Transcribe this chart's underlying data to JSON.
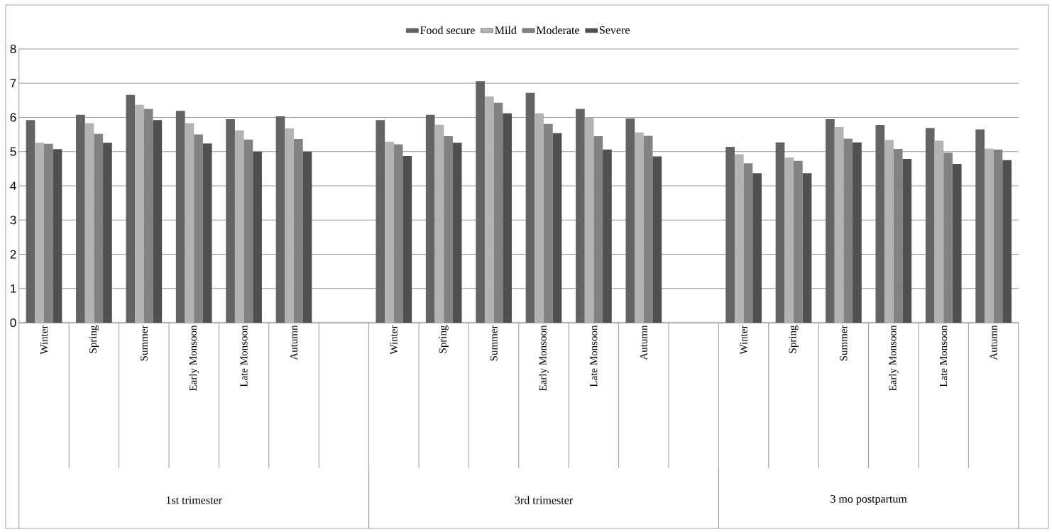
{
  "chart_data": {
    "type": "bar",
    "categories": [
      "Winter",
      "Spring",
      "Summer",
      "Early Monsoon",
      "Late Monsoon",
      "Autumn",
      null,
      "Winter",
      "Spring",
      "Summer",
      "Early Monsoon",
      "Late Monsoon",
      "Autumn",
      null,
      "Winter",
      "Spring",
      "Summer",
      "Early Monsoon",
      "Late Monsoon",
      "Autumn"
    ],
    "series": [
      {
        "name": "Food secure",
        "color": "#636363",
        "values": [
          5.92,
          6.08,
          6.66,
          6.19,
          5.95,
          6.03,
          null,
          5.92,
          6.08,
          7.06,
          6.72,
          6.25,
          5.97,
          null,
          5.14,
          5.27,
          5.95,
          5.78,
          5.69,
          5.65
        ]
      },
      {
        "name": "Mild",
        "color": "#b3b3b3",
        "values": [
          5.26,
          5.83,
          6.37,
          5.83,
          5.62,
          5.68,
          null,
          5.29,
          5.79,
          6.61,
          6.12,
          6.0,
          5.56,
          null,
          4.92,
          4.83,
          5.72,
          5.34,
          5.32,
          5.09
        ]
      },
      {
        "name": "Moderate",
        "color": "#828282",
        "values": [
          5.23,
          5.52,
          6.25,
          5.5,
          5.35,
          5.37,
          null,
          5.21,
          5.45,
          6.43,
          5.81,
          5.45,
          5.46,
          null,
          4.66,
          4.73,
          5.38,
          5.08,
          4.97,
          5.06
        ]
      },
      {
        "name": "Severe",
        "color": "#505050",
        "values": [
          5.07,
          5.26,
          5.92,
          5.24,
          5.0,
          5.0,
          null,
          4.87,
          5.26,
          6.12,
          5.54,
          5.06,
          4.86,
          null,
          4.37,
          4.37,
          5.27,
          4.79,
          4.64,
          4.75
        ]
      }
    ],
    "ylim": [
      0,
      8
    ],
    "yticks": [
      0,
      1,
      2,
      3,
      4,
      5,
      6,
      7,
      8
    ],
    "grid": "y",
    "legend": "top",
    "annotations": [
      "1st trimester",
      "3rd trimester",
      "3 mo postpartum"
    ]
  }
}
